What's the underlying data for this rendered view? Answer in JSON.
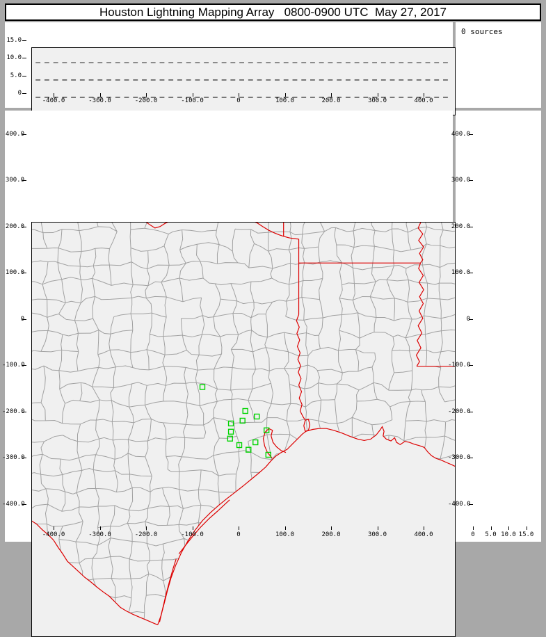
{
  "title": "Houston Lightning Mapping Array   0800-0900 UTC  May 27, 2017",
  "sources_panel": {
    "label": "0 sources"
  },
  "colors": {
    "background_frame": "#a8a8a8",
    "panel_background": "#ffffff",
    "plot_background": "#f0f0f0",
    "axis": "#000000",
    "county_line": "#a0a0a0",
    "state_border": "#dd0000",
    "station_marker": "#00d400"
  },
  "axes": {
    "east_west_km": {
      "tick_labels": [
        "-400.0",
        "-300.0",
        "-200.0",
        "-100.0",
        "0",
        "100.0",
        "200.0",
        "300.0",
        "400.0"
      ],
      "tick_values": [
        -400,
        -300,
        -200,
        -100,
        0,
        100,
        200,
        300,
        400
      ],
      "range": [
        -458.6,
        458.6
      ]
    },
    "north_south_km": {
      "tick_labels": [
        "400.0",
        "300.0",
        "200.0",
        "100.0",
        "0",
        "-100.0",
        "-200.0",
        "-300.0",
        "-400.0"
      ],
      "tick_values": [
        400,
        300,
        200,
        100,
        0,
        -100,
        -200,
        -300,
        -400
      ],
      "range": [
        -448.9,
        448.9
      ]
    },
    "altitude_km": {
      "tick_labels": [
        "0",
        "5.0",
        "10.0",
        "15.0"
      ],
      "tick_values": [
        0,
        5,
        10,
        15
      ],
      "range": [
        0,
        19.2
      ],
      "gridlines": [
        5,
        10,
        15
      ]
    }
  },
  "chart_data": {
    "type": "scatter",
    "title": "Houston Lightning Mapping Array 0800-0900 UTC May 27, 2017",
    "time_window_utc": "0800-0900",
    "date": "May 27, 2017",
    "source_count": 0,
    "panels": [
      {
        "name": "altitude-vs-east-west",
        "x_range": [
          -458.6,
          458.6
        ],
        "y_range": [
          0,
          19.2
        ],
        "y_gridlines_km": [
          5,
          10,
          15
        ],
        "grid_style": "dashed"
      },
      {
        "name": "source-count-box",
        "text": "0 sources"
      },
      {
        "name": "plan-view-map",
        "x_range": [
          -458.6,
          458.6
        ],
        "y_range": [
          -448.9,
          448.9
        ],
        "map_layers": [
          "county-borders-gray",
          "state-borders-red",
          "lma-stations-green"
        ]
      },
      {
        "name": "altitude-vs-north-south",
        "x_range": [
          0,
          19.2
        ],
        "y_range": [
          -448.9,
          448.9
        ],
        "x_gridlines_km": [
          5,
          10,
          15
        ],
        "grid_style": "dashed"
      }
    ],
    "series": [
      {
        "name": "lightning-sources",
        "marker": "point",
        "color": "#000000",
        "points": []
      },
      {
        "name": "lma-stations",
        "marker": "open-square",
        "color": "#00d400",
        "points_km_east_north": [
          [
            -89,
            92
          ],
          [
            4,
            40
          ],
          [
            29,
            28
          ],
          [
            -2,
            19
          ],
          [
            -27,
            13
          ],
          [
            50,
            -2
          ],
          [
            -27,
            -5
          ],
          [
            -29,
            -20
          ],
          [
            26,
            -28
          ],
          [
            -9,
            -34
          ],
          [
            11,
            -44
          ],
          [
            54,
            -55
          ]
        ]
      }
    ]
  }
}
